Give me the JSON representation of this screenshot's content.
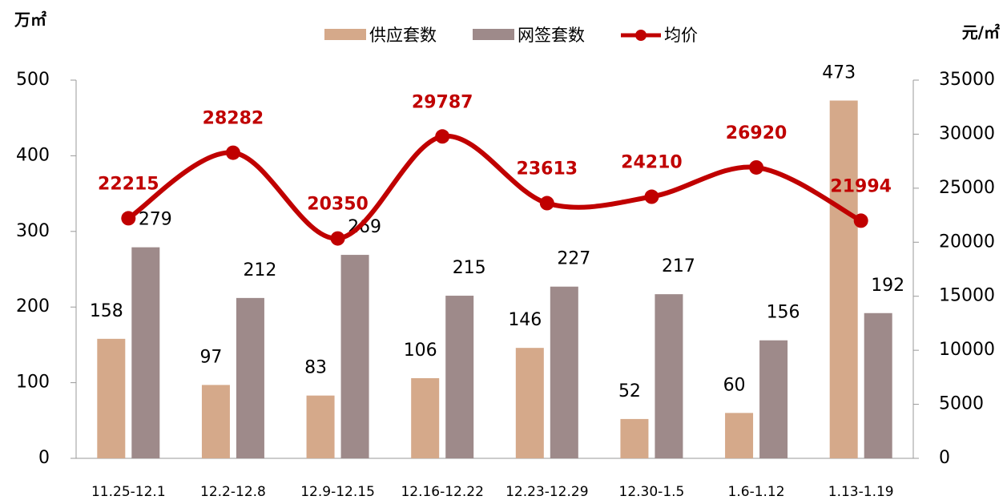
{
  "chart_data": {
    "type": "bar",
    "y_label": "万㎡",
    "y2_label": "元/㎡",
    "categories": [
      "11.25-12.1",
      "12.2-12.8",
      "12.9-12.15",
      "12.16-12.22",
      "12.23-12.29",
      "12.30-1.5",
      "1.6-1.12",
      "1.13-1.19"
    ],
    "series": [
      {
        "name": "供应套数",
        "color": "#d5a98a",
        "values": [
          158,
          97,
          83,
          106,
          146,
          52,
          60,
          473
        ]
      },
      {
        "name": "网签套数",
        "color": "#9e8a8a",
        "values": [
          279,
          212,
          269,
          215,
          227,
          217,
          156,
          192
        ]
      },
      {
        "name": "均价",
        "color": "#c00000",
        "axis": "y2",
        "values": [
          22215,
          28282,
          20350,
          29787,
          23613,
          24210,
          26920,
          21994
        ]
      }
    ],
    "ylim": [
      0,
      500
    ],
    "yticks": [
      0,
      100,
      200,
      300,
      400,
      500
    ],
    "y2lim": [
      0,
      35000
    ],
    "y2ticks": [
      0,
      5000,
      10000,
      15000,
      20000,
      25000,
      30000,
      35000
    ],
    "legend": "top"
  }
}
